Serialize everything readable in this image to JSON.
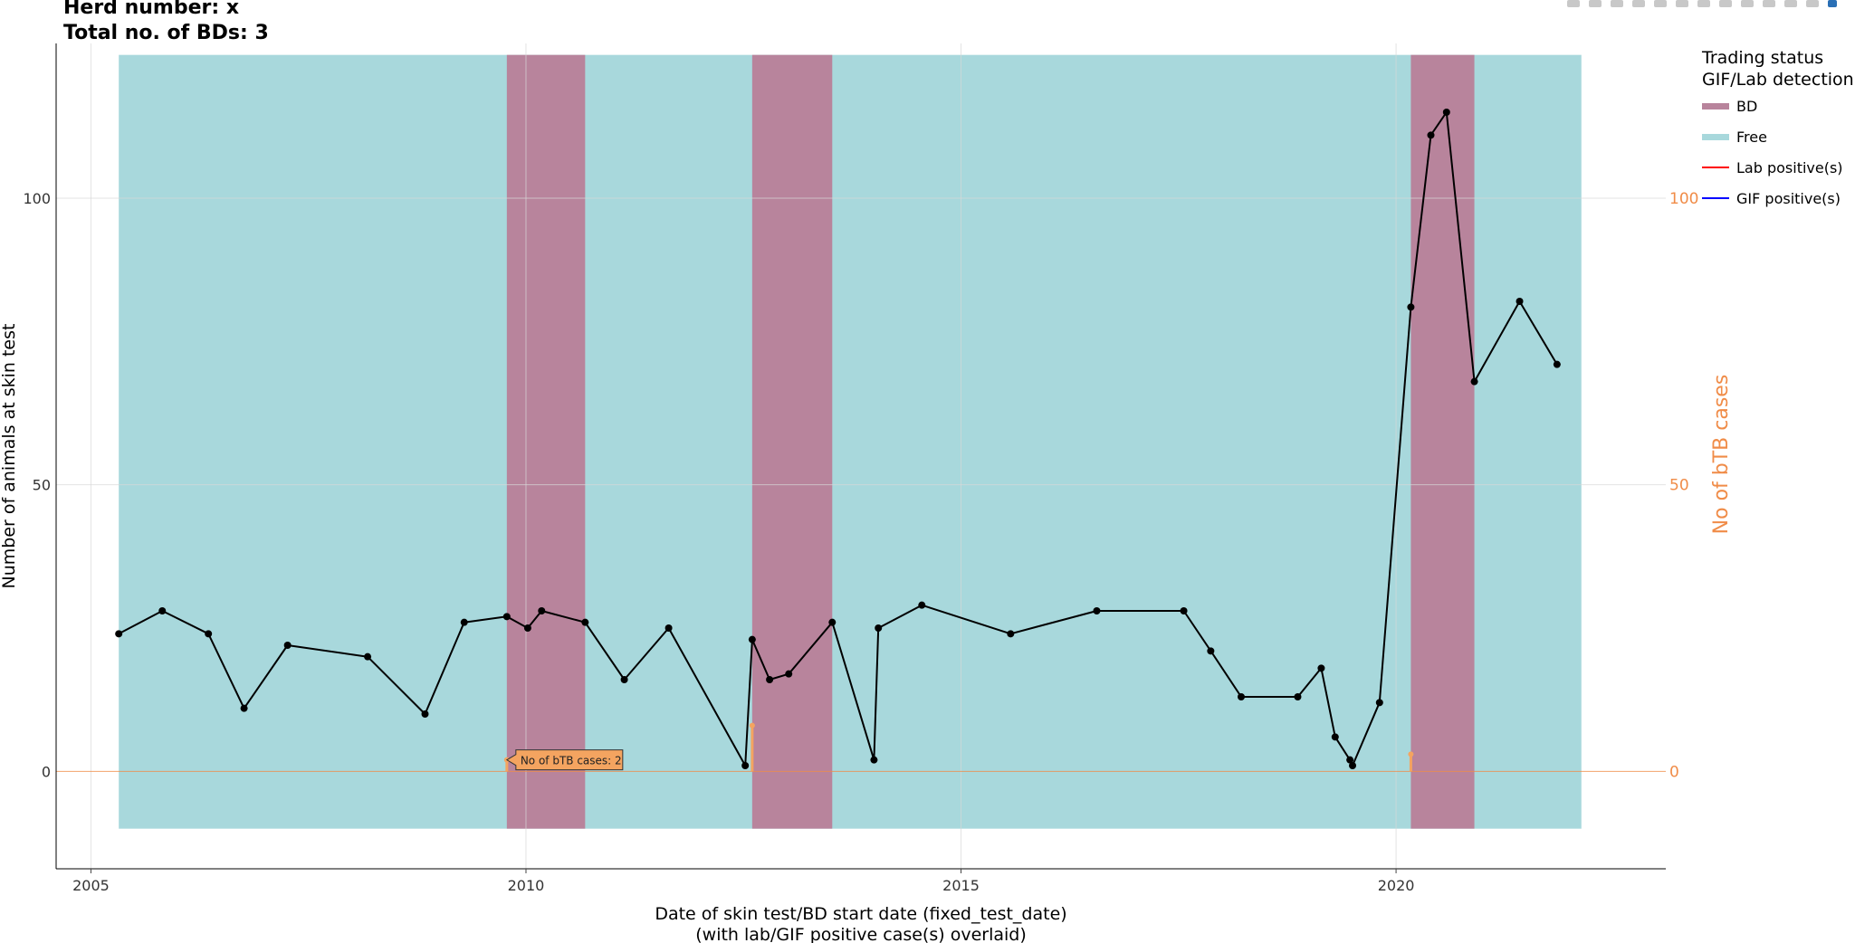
{
  "header": {
    "title_line1": "Herd number: x",
    "title_line2": "Total no. of BDs: 3"
  },
  "toolbar": {
    "icons": [
      "camera-icon",
      "zoom-icon",
      "pan-icon",
      "box-select-icon",
      "lasso-icon",
      "zoom-in-icon",
      "zoom-out-icon",
      "autoscale-icon",
      "reset-axes-icon",
      "spike-lines-icon",
      "hover-closest-icon",
      "hover-compare-icon",
      "plotly-logo-icon"
    ]
  },
  "legend": {
    "title_line1": "Trading status",
    "title_line2": "GIF/Lab detection",
    "items": [
      {
        "label": "BD",
        "kind": "band",
        "color": "#b8849c"
      },
      {
        "label": "Free",
        "kind": "band",
        "color": "#a8d8dc"
      },
      {
        "label": "Lab positive(s)",
        "kind": "line",
        "color": "#ff0000"
      },
      {
        "label": "GIF positive(s)",
        "kind": "line",
        "color": "#0000ff"
      }
    ]
  },
  "annotation": {
    "text": "No of bTB cases: 2"
  },
  "chart_data": {
    "type": "line",
    "xlabel_line1": "Date of skin test/BD start date (fixed_test_date)",
    "xlabel_line2": "(with lab/GIF positive case(s) overlaid)",
    "ylabel": "Number of animals at skin test",
    "y2label": "No of bTB cases",
    "xlim": [
      2004.6,
      2023.1
    ],
    "ylim": [
      -17,
      127
    ],
    "y2lim": [
      -17,
      127
    ],
    "xticks": [
      2005,
      2010,
      2015,
      2020
    ],
    "yticks": [
      0,
      50,
      100
    ],
    "y2ticks": [
      0,
      50,
      100
    ],
    "grid": true,
    "colors": {
      "free": "#a8d8dc",
      "bd": "#b8849c",
      "line": "#000000",
      "cases": "#f4a460",
      "case_axis": "#f08c48"
    },
    "bands": [
      {
        "status": "Free",
        "start": 2005.32,
        "end": 2022.13,
        "ymin": -10,
        "ymax": 125
      },
      {
        "status": "BD",
        "start": 2009.78,
        "end": 2010.68,
        "ymin": -10,
        "ymax": 125
      },
      {
        "status": "BD",
        "start": 2012.6,
        "end": 2013.52,
        "ymin": -10,
        "ymax": 125
      },
      {
        "status": "BD",
        "start": 2020.17,
        "end": 2020.9,
        "ymin": -10,
        "ymax": 125
      }
    ],
    "series": [
      {
        "name": "Number of animals at skin test",
        "x": [
          2005.32,
          2005.82,
          2006.35,
          2006.76,
          2007.26,
          2008.18,
          2008.84,
          2009.29,
          2009.78,
          2010.02,
          2010.18,
          2010.68,
          2011.13,
          2011.64,
          2012.52,
          2012.6,
          2012.8,
          2013.02,
          2013.52,
          2014.0,
          2014.05,
          2014.55,
          2015.57,
          2016.56,
          2017.56,
          2017.87,
          2018.22,
          2018.87,
          2019.14,
          2019.3,
          2019.47,
          2019.5,
          2019.81,
          2020.17,
          2020.4,
          2020.58,
          2020.9,
          2021.42,
          2021.85
        ],
        "y": [
          24,
          28,
          24,
          11,
          22,
          20,
          10,
          26,
          27,
          25,
          28,
          26,
          16,
          25,
          1,
          23,
          16,
          17,
          26,
          2,
          25,
          29,
          24,
          28,
          28,
          21,
          13,
          13,
          18,
          6,
          2,
          1,
          12,
          81,
          111,
          115,
          68,
          82,
          71
        ]
      }
    ],
    "bTB_cases": [
      {
        "x": 2009.78,
        "cases": 2
      },
      {
        "x": 2012.6,
        "cases": 8
      },
      {
        "x": 2020.17,
        "cases": 3
      }
    ]
  }
}
